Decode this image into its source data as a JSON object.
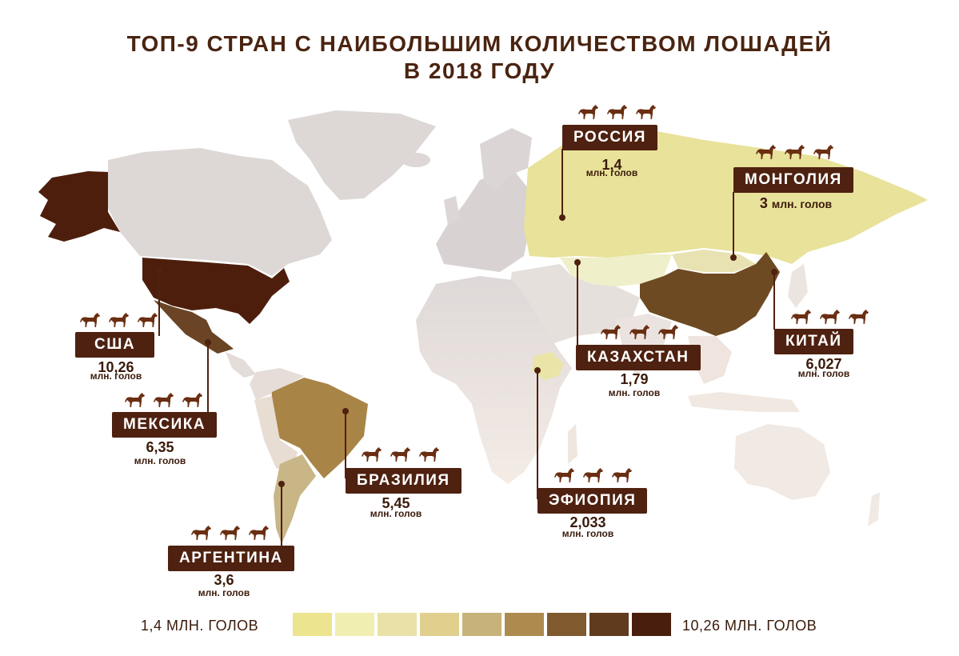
{
  "title": {
    "line1": "ТОП-9 СТРАН С НАИБОЛЬШИМ КОЛИЧЕСТВОМ ЛОШАДЕЙ",
    "line2": "В 2018 ГОДУ"
  },
  "unit_label": "млн. голов",
  "countries": [
    {
      "name": "РОССИЯ",
      "value": "1,4",
      "color": "#e8e29a"
    },
    {
      "name": "МОНГОЛИЯ",
      "value": "3",
      "unit": "млн. голов",
      "color": "#e8e2b3"
    },
    {
      "name": "КАЗАХСТАН",
      "value": "1,79",
      "color": "#efefc9"
    },
    {
      "name": "КИТАЙ",
      "value": "6,027",
      "color": "#6e4a22"
    },
    {
      "name": "США",
      "value": "10,26",
      "color": "#4e1e0d"
    },
    {
      "name": "МЕКСИКА",
      "value": "6,35",
      "color": "#6a4424"
    },
    {
      "name": "БРАЗИЛИЯ",
      "value": "5,45",
      "color": "#a98447"
    },
    {
      "name": "АРГЕНТИНА",
      "value": "3,6",
      "color": "#c9b686"
    },
    {
      "name": "ЭФИОПИЯ",
      "value": "2,033",
      "color": "#eae5a6"
    }
  ],
  "legend": {
    "min_label": "1,4 МЛН. ГОЛОВ",
    "max_label": "10,26 МЛН. ГОЛОВ",
    "colors": [
      "#ece48e",
      "#f1eeb2",
      "#e9e1a8",
      "#e1cf8e",
      "#c7b27a",
      "#ad8b4f",
      "#805a2f",
      "#613b1e",
      "#4a1e0c"
    ]
  }
}
